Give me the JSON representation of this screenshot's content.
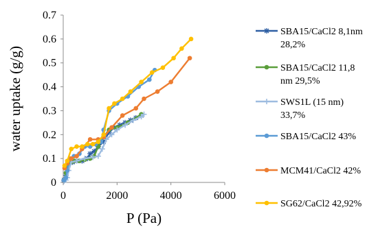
{
  "chart_data": {
    "type": "scatter",
    "xlabel": "P (Pa)",
    "ylabel": "water uptake (g/g)",
    "xlim": [
      0,
      6000
    ],
    "ylim": [
      0,
      0.7
    ],
    "xticks": [
      "0",
      "2000",
      "4000",
      "6000"
    ],
    "yticks": [
      "0",
      "0.1",
      "0.2",
      "0.3",
      "0.4",
      "0.5",
      "0.6",
      "0.7"
    ],
    "grid": false,
    "legend_position": "right",
    "series": [
      {
        "name_lines": [
          "SBA15/CaCl2 8,1nm",
          "28,2%"
        ],
        "color": "#2e5fa3",
        "marker": "star",
        "points": [
          [
            30,
            0.01
          ],
          [
            100,
            0.03
          ],
          [
            150,
            0.06
          ],
          [
            200,
            0.08
          ],
          [
            260,
            0.085
          ],
          [
            350,
            0.085
          ],
          [
            500,
            0.09
          ],
          [
            700,
            0.09
          ],
          [
            900,
            0.1
          ],
          [
            1000,
            0.12
          ],
          [
            1150,
            0.13
          ],
          [
            1300,
            0.15
          ],
          [
            1500,
            0.17
          ],
          [
            1700,
            0.21
          ],
          [
            1900,
            0.23
          ],
          [
            2100,
            0.24
          ],
          [
            2300,
            0.25
          ],
          [
            2500,
            0.26
          ],
          [
            2700,
            0.27
          ],
          [
            2900,
            0.28
          ]
        ]
      },
      {
        "name_lines": [
          "SBA15/CaCl2 11,8",
          "nm 29,5%"
        ],
        "color": "#5a9e3a",
        "marker": "circle",
        "points": [
          [
            30,
            0.01
          ],
          [
            100,
            0.04
          ],
          [
            200,
            0.075
          ],
          [
            300,
            0.085
          ],
          [
            400,
            0.09
          ],
          [
            600,
            0.09
          ],
          [
            800,
            0.095
          ],
          [
            1000,
            0.1
          ],
          [
            1150,
            0.11
          ],
          [
            1300,
            0.15
          ],
          [
            1500,
            0.19
          ],
          [
            1700,
            0.22
          ],
          [
            2000,
            0.23
          ],
          [
            2400,
            0.25
          ],
          [
            2900,
            0.285
          ]
        ]
      },
      {
        "name_lines": [
          "SWS1L (15 nm)",
          "33,7%"
        ],
        "color": "#9dbce0",
        "marker": "plus",
        "points": [
          [
            30,
            0.005
          ],
          [
            100,
            0.01
          ],
          [
            150,
            0.02
          ],
          [
            200,
            0.05
          ],
          [
            300,
            0.085
          ],
          [
            500,
            0.09
          ],
          [
            800,
            0.1
          ],
          [
            1100,
            0.105
          ],
          [
            1300,
            0.11
          ],
          [
            1450,
            0.14
          ],
          [
            1600,
            0.18
          ],
          [
            1800,
            0.2
          ],
          [
            2000,
            0.22
          ],
          [
            2300,
            0.24
          ],
          [
            2600,
            0.26
          ],
          [
            2900,
            0.275
          ],
          [
            3000,
            0.285
          ]
        ]
      },
      {
        "name_lines": [
          "SBA15/CaCl2 43%"
        ],
        "color": "#5b9bd5",
        "marker": "circle",
        "points": [
          [
            30,
            0.01
          ],
          [
            100,
            0.02
          ],
          [
            150,
            0.05
          ],
          [
            250,
            0.1
          ],
          [
            400,
            0.11
          ],
          [
            600,
            0.12
          ],
          [
            800,
            0.15
          ],
          [
            1000,
            0.15
          ],
          [
            1200,
            0.16
          ],
          [
            1400,
            0.17
          ],
          [
            1500,
            0.22
          ],
          [
            1700,
            0.3
          ],
          [
            2000,
            0.33
          ],
          [
            2400,
            0.36
          ],
          [
            2800,
            0.4
          ],
          [
            3200,
            0.43
          ],
          [
            3400,
            0.47
          ]
        ]
      },
      {
        "name_lines": [
          "MCM41/CaCl2 42%"
        ],
        "color": "#ed7d31",
        "marker": "circle",
        "points": [
          [
            50,
            0.06
          ],
          [
            150,
            0.08
          ],
          [
            300,
            0.1
          ],
          [
            500,
            0.11
          ],
          [
            700,
            0.14
          ],
          [
            1000,
            0.18
          ],
          [
            1300,
            0.18
          ],
          [
            1500,
            0.19
          ],
          [
            1800,
            0.23
          ],
          [
            2200,
            0.28
          ],
          [
            2700,
            0.31
          ],
          [
            3000,
            0.35
          ],
          [
            3500,
            0.38
          ],
          [
            4000,
            0.42
          ],
          [
            4700,
            0.52
          ]
        ]
      },
      {
        "name_lines": [
          "SG62/CaCl2 42,92%"
        ],
        "color": "#ffc000",
        "marker": "circle",
        "points": [
          [
            50,
            0.07
          ],
          [
            150,
            0.09
          ],
          [
            300,
            0.14
          ],
          [
            500,
            0.15
          ],
          [
            700,
            0.15
          ],
          [
            900,
            0.16
          ],
          [
            1100,
            0.16
          ],
          [
            1300,
            0.17
          ],
          [
            1500,
            0.2
          ],
          [
            1700,
            0.31
          ],
          [
            1900,
            0.33
          ],
          [
            2200,
            0.35
          ],
          [
            2500,
            0.38
          ],
          [
            2900,
            0.42
          ],
          [
            3300,
            0.46
          ],
          [
            3700,
            0.48
          ],
          [
            4100,
            0.52
          ],
          [
            4400,
            0.56
          ],
          [
            4750,
            0.6
          ]
        ]
      }
    ]
  }
}
